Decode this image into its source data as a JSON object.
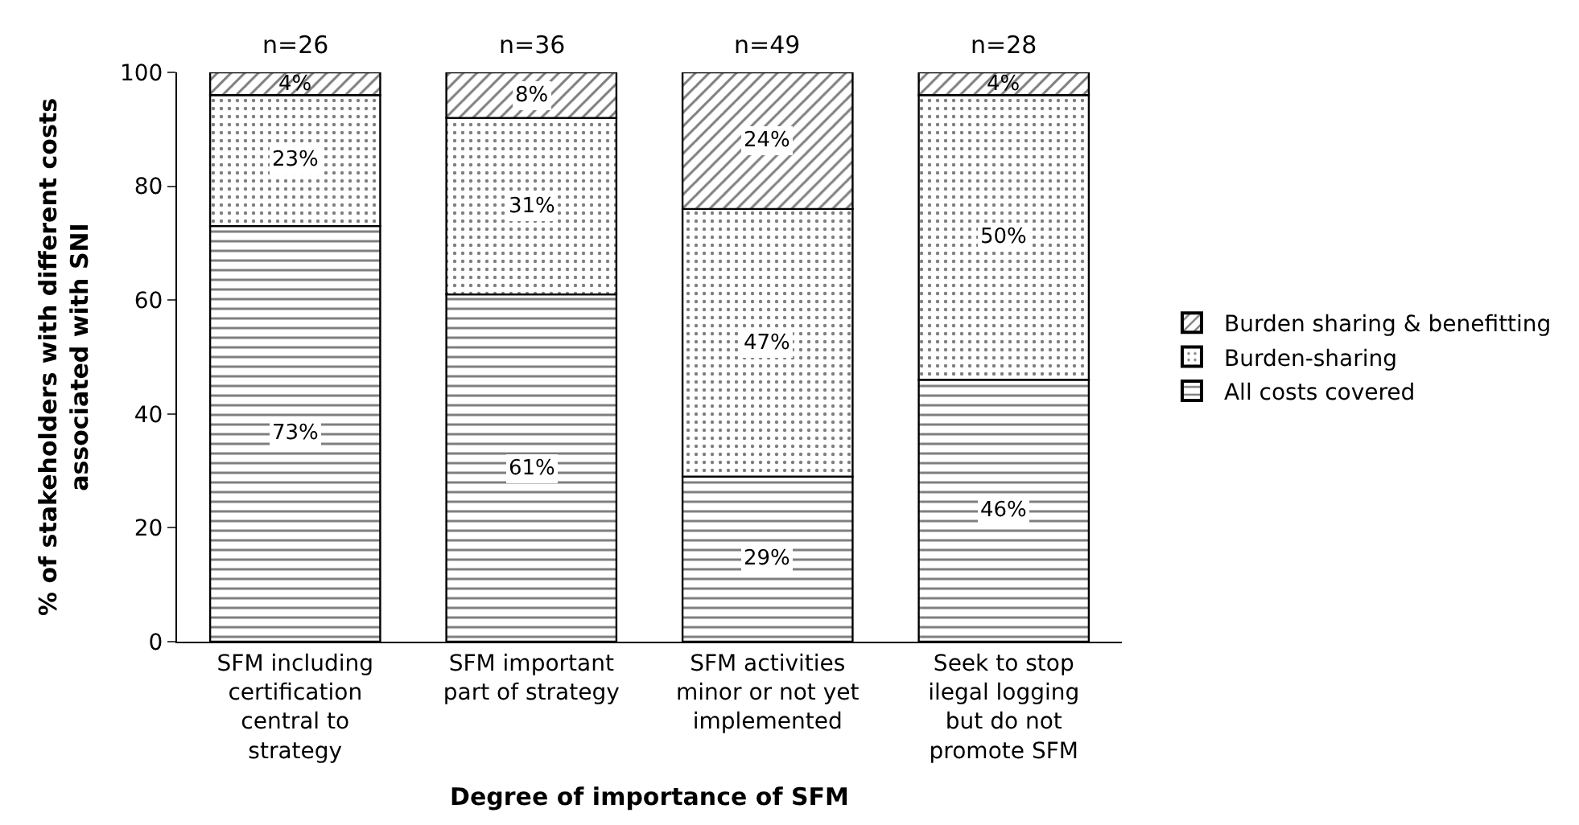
{
  "chart_data": {
    "type": "bar",
    "stacked": true,
    "xlabel": "Degree of importance of SFM",
    "ylabel": "% of stakeholders with different costs associated with SNI",
    "categories": [
      "SFM including certification central to strategy",
      "SFM important part of strategy",
      "SFM activities minor or not yet implemented",
      "Seek to stop ilegal logging but do not promote SFM"
    ],
    "series": [
      {
        "name": "All costs covered",
        "color": "#000000",
        "values": [
          73,
          61,
          29,
          46
        ],
        "value_labels": [
          "73%",
          "61%",
          "29%",
          "46%"
        ]
      },
      {
        "name": "Burden-sharing",
        "color": "#000000",
        "values": [
          23,
          31,
          47,
          50
        ],
        "value_labels": [
          "23%",
          "31%",
          "47%",
          "50%"
        ]
      },
      {
        "name": "Burden sharing & benefitting",
        "color": "#000000",
        "values": [
          4,
          8,
          24,
          4
        ],
        "value_labels": [
          "4%",
          "8%",
          "24%",
          "4%"
        ]
      }
    ],
    "annotations": [
      "n=26",
      "n=36",
      "n=49",
      "n=28"
    ],
    "ylim": [
      0,
      100
    ],
    "yticks": [
      0,
      20,
      40,
      60,
      80,
      100
    ],
    "legend": "right"
  }
}
